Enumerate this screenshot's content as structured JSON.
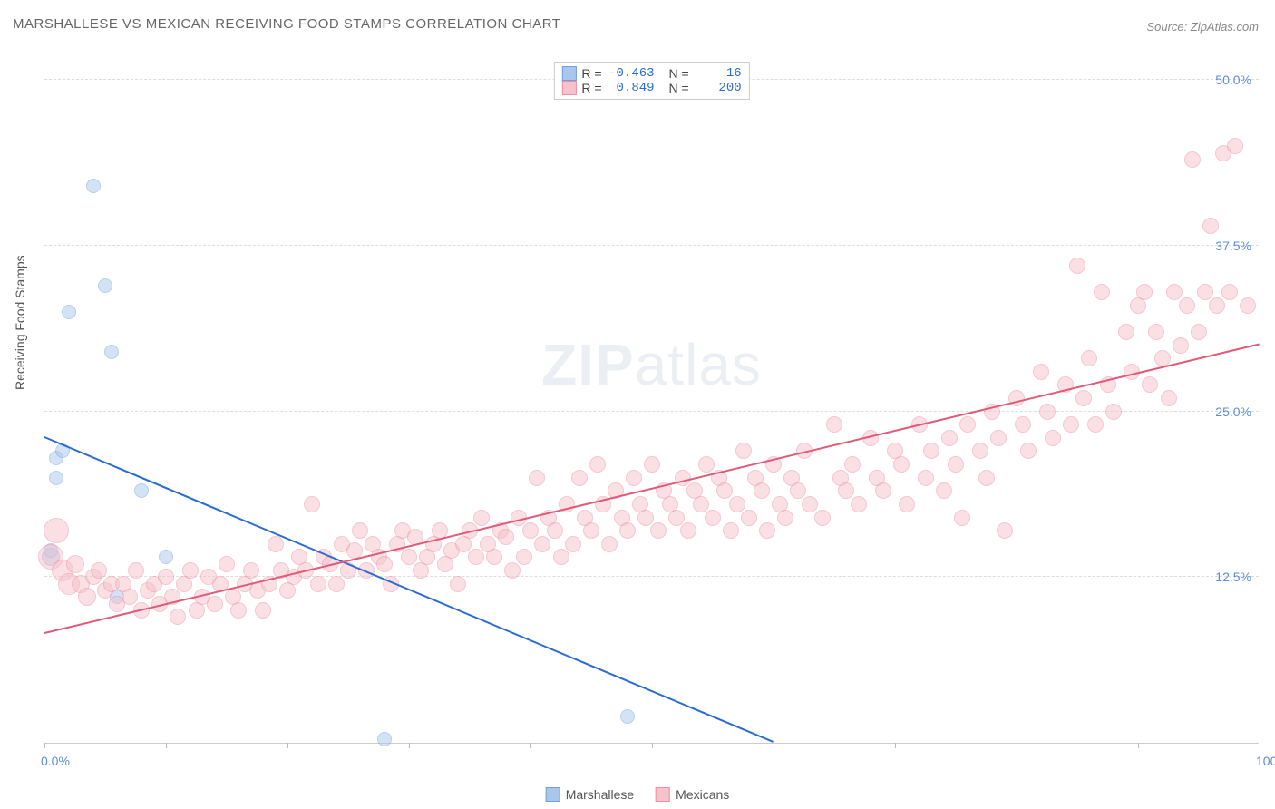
{
  "title": "MARSHALLESE VS MEXICAN RECEIVING FOOD STAMPS CORRELATION CHART",
  "source": "Source: ZipAtlas.com",
  "watermark": "ZIPatlas",
  "chart": {
    "type": "scatter",
    "ylabel": "Receiving Food Stamps",
    "xlim": [
      0,
      100
    ],
    "ylim": [
      0,
      52
    ],
    "x_ticks": [
      0,
      10,
      20,
      30,
      40,
      50,
      60,
      70,
      80,
      90,
      100
    ],
    "x_tick_labels": {
      "0": "0.0%",
      "100": "100.0%"
    },
    "y_ticks": [
      12.5,
      25.0,
      37.5,
      50.0
    ],
    "y_tick_labels": [
      "12.5%",
      "25.0%",
      "37.5%",
      "50.0%"
    ],
    "grid_color": "#dddddd",
    "grid_dashed": true,
    "background_color": "#ffffff",
    "axis_color": "#cccccc",
    "label_color": "#5b8fd6",
    "tick_fontsize": 14,
    "title_fontsize": 15,
    "marker_radius": 8,
    "marker_opacity": 0.5,
    "line_width": 2,
    "stats": {
      "r_label": "R =",
      "n_label": "N ="
    },
    "series": [
      {
        "name": "Marshallese",
        "color_fill": "#a9c7ec",
        "color_stroke": "#6fa1dd",
        "line_color": "#2b6cd4",
        "r": "-0.463",
        "n": "16",
        "trend": {
          "x1": 0,
          "y1": 23,
          "x2": 60,
          "y2": 0
        },
        "points": [
          [
            0.5,
            14,
            10
          ],
          [
            0.5,
            14.5,
            8
          ],
          [
            1,
            20,
            8
          ],
          [
            1,
            21.5,
            8
          ],
          [
            1.5,
            22,
            8
          ],
          [
            2,
            32.5,
            8
          ],
          [
            4,
            42,
            8
          ],
          [
            5,
            34.5,
            8
          ],
          [
            5.5,
            29.5,
            8
          ],
          [
            6,
            11,
            8
          ],
          [
            8,
            19,
            8
          ],
          [
            10,
            14,
            8
          ],
          [
            28,
            0.3,
            8
          ],
          [
            48,
            2,
            8
          ]
        ]
      },
      {
        "name": "Mexicans",
        "color_fill": "#f6c2cb",
        "color_stroke": "#ed8fa0",
        "line_color": "#e05a7a",
        "r": "0.849",
        "n": "200",
        "trend": {
          "x1": 0,
          "y1": 8.2,
          "x2": 100,
          "y2": 30
        },
        "points": [
          [
            0.5,
            14,
            14
          ],
          [
            1,
            16,
            14
          ],
          [
            1.5,
            13,
            12
          ],
          [
            2,
            12,
            12
          ],
          [
            2.5,
            13.5,
            10
          ],
          [
            3,
            12,
            10
          ],
          [
            3.5,
            11,
            10
          ],
          [
            4,
            12.5,
            9
          ],
          [
            4.5,
            13,
            9
          ],
          [
            5,
            11.5,
            9
          ],
          [
            5.5,
            12,
            9
          ],
          [
            6,
            10.5,
            9
          ],
          [
            6.5,
            12,
            9
          ],
          [
            7,
            11,
            9
          ],
          [
            7.5,
            13,
            9
          ],
          [
            8,
            10,
            9
          ],
          [
            8.5,
            11.5,
            9
          ],
          [
            9,
            12,
            9
          ],
          [
            9.5,
            10.5,
            9
          ],
          [
            10,
            12.5,
            9
          ],
          [
            10.5,
            11,
            9
          ],
          [
            11,
            9.5,
            9
          ],
          [
            11.5,
            12,
            9
          ],
          [
            12,
            13,
            9
          ],
          [
            12.5,
            10,
            9
          ],
          [
            13,
            11,
            9
          ],
          [
            13.5,
            12.5,
            9
          ],
          [
            14,
            10.5,
            9
          ],
          [
            14.5,
            12,
            9
          ],
          [
            15,
            13.5,
            9
          ],
          [
            15.5,
            11,
            9
          ],
          [
            16,
            10,
            9
          ],
          [
            16.5,
            12,
            9
          ],
          [
            17,
            13,
            9
          ],
          [
            17.5,
            11.5,
            9
          ],
          [
            18,
            10,
            9
          ],
          [
            18.5,
            12,
            9
          ],
          [
            19,
            15,
            9
          ],
          [
            19.5,
            13,
            9
          ],
          [
            20,
            11.5,
            9
          ],
          [
            20.5,
            12.5,
            9
          ],
          [
            21,
            14,
            9
          ],
          [
            21.5,
            13,
            9
          ],
          [
            22,
            18,
            9
          ],
          [
            22.5,
            12,
            9
          ],
          [
            23,
            14,
            9
          ],
          [
            23.5,
            13.5,
            9
          ],
          [
            24,
            12,
            9
          ],
          [
            24.5,
            15,
            9
          ],
          [
            25,
            13,
            9
          ],
          [
            25.5,
            14.5,
            9
          ],
          [
            26,
            16,
            9
          ],
          [
            26.5,
            13,
            9
          ],
          [
            27,
            15,
            9
          ],
          [
            27.5,
            14,
            9
          ],
          [
            28,
            13.5,
            9
          ],
          [
            28.5,
            12,
            9
          ],
          [
            29,
            15,
            9
          ],
          [
            29.5,
            16,
            9
          ],
          [
            30,
            14,
            9
          ],
          [
            30.5,
            15.5,
            9
          ],
          [
            31,
            13,
            9
          ],
          [
            31.5,
            14,
            9
          ],
          [
            32,
            15,
            9
          ],
          [
            32.5,
            16,
            9
          ],
          [
            33,
            13.5,
            9
          ],
          [
            33.5,
            14.5,
            9
          ],
          [
            34,
            12,
            9
          ],
          [
            34.5,
            15,
            9
          ],
          [
            35,
            16,
            9
          ],
          [
            35.5,
            14,
            9
          ],
          [
            36,
            17,
            9
          ],
          [
            36.5,
            15,
            9
          ],
          [
            37,
            14,
            9
          ],
          [
            37.5,
            16,
            9
          ],
          [
            38,
            15.5,
            9
          ],
          [
            38.5,
            13,
            9
          ],
          [
            39,
            17,
            9
          ],
          [
            39.5,
            14,
            9
          ],
          [
            40,
            16,
            9
          ],
          [
            40.5,
            20,
            9
          ],
          [
            41,
            15,
            9
          ],
          [
            41.5,
            17,
            9
          ],
          [
            42,
            16,
            9
          ],
          [
            42.5,
            14,
            9
          ],
          [
            43,
            18,
            9
          ],
          [
            43.5,
            15,
            9
          ],
          [
            44,
            20,
            9
          ],
          [
            44.5,
            17,
            9
          ],
          [
            45,
            16,
            9
          ],
          [
            45.5,
            21,
            9
          ],
          [
            46,
            18,
            9
          ],
          [
            46.5,
            15,
            9
          ],
          [
            47,
            19,
            9
          ],
          [
            47.5,
            17,
            9
          ],
          [
            48,
            16,
            9
          ],
          [
            48.5,
            20,
            9
          ],
          [
            49,
            18,
            9
          ],
          [
            49.5,
            17,
            9
          ],
          [
            50,
            21,
            9
          ],
          [
            50.5,
            16,
            9
          ],
          [
            51,
            19,
            9
          ],
          [
            51.5,
            18,
            9
          ],
          [
            52,
            17,
            9
          ],
          [
            52.5,
            20,
            9
          ],
          [
            53,
            16,
            9
          ],
          [
            53.5,
            19,
            9
          ],
          [
            54,
            18,
            9
          ],
          [
            54.5,
            21,
            9
          ],
          [
            55,
            17,
            9
          ],
          [
            55.5,
            20,
            9
          ],
          [
            56,
            19,
            9
          ],
          [
            56.5,
            16,
            9
          ],
          [
            57,
            18,
            9
          ],
          [
            57.5,
            22,
            9
          ],
          [
            58,
            17,
            9
          ],
          [
            58.5,
            20,
            9
          ],
          [
            59,
            19,
            9
          ],
          [
            59.5,
            16,
            9
          ],
          [
            60,
            21,
            9
          ],
          [
            60.5,
            18,
            9
          ],
          [
            61,
            17,
            9
          ],
          [
            61.5,
            20,
            9
          ],
          [
            62,
            19,
            9
          ],
          [
            62.5,
            22,
            9
          ],
          [
            63,
            18,
            9
          ],
          [
            64,
            17,
            9
          ],
          [
            65,
            24,
            9
          ],
          [
            65.5,
            20,
            9
          ],
          [
            66,
            19,
            9
          ],
          [
            66.5,
            21,
            9
          ],
          [
            67,
            18,
            9
          ],
          [
            68,
            23,
            9
          ],
          [
            68.5,
            20,
            9
          ],
          [
            69,
            19,
            9
          ],
          [
            70,
            22,
            9
          ],
          [
            70.5,
            21,
            9
          ],
          [
            71,
            18,
            9
          ],
          [
            72,
            24,
            9
          ],
          [
            72.5,
            20,
            9
          ],
          [
            73,
            22,
            9
          ],
          [
            74,
            19,
            9
          ],
          [
            74.5,
            23,
            9
          ],
          [
            75,
            21,
            9
          ],
          [
            75.5,
            17,
            9
          ],
          [
            76,
            24,
            9
          ],
          [
            77,
            22,
            9
          ],
          [
            77.5,
            20,
            9
          ],
          [
            78,
            25,
            9
          ],
          [
            78.5,
            23,
            9
          ],
          [
            79,
            16,
            9
          ],
          [
            80,
            26,
            9
          ],
          [
            80.5,
            24,
            9
          ],
          [
            81,
            22,
            9
          ],
          [
            82,
            28,
            9
          ],
          [
            82.5,
            25,
            9
          ],
          [
            83,
            23,
            9
          ],
          [
            84,
            27,
            9
          ],
          [
            84.5,
            24,
            9
          ],
          [
            85,
            36,
            9
          ],
          [
            85.5,
            26,
            9
          ],
          [
            86,
            29,
            9
          ],
          [
            86.5,
            24,
            9
          ],
          [
            87,
            34,
            9
          ],
          [
            87.5,
            27,
            9
          ],
          [
            88,
            25,
            9
          ],
          [
            89,
            31,
            9
          ],
          [
            89.5,
            28,
            9
          ],
          [
            90,
            33,
            9
          ],
          [
            90.5,
            34,
            9
          ],
          [
            91,
            27,
            9
          ],
          [
            91.5,
            31,
            9
          ],
          [
            92,
            29,
            9
          ],
          [
            92.5,
            26,
            9
          ],
          [
            93,
            34,
            9
          ],
          [
            93.5,
            30,
            9
          ],
          [
            94,
            33,
            9
          ],
          [
            94.5,
            44,
            9
          ],
          [
            95,
            31,
            9
          ],
          [
            95.5,
            34,
            9
          ],
          [
            96,
            39,
            9
          ],
          [
            96.5,
            33,
            9
          ],
          [
            97,
            44.5,
            9
          ],
          [
            97.5,
            34,
            9
          ],
          [
            98,
            45,
            9
          ],
          [
            99,
            33,
            9
          ]
        ]
      }
    ]
  }
}
